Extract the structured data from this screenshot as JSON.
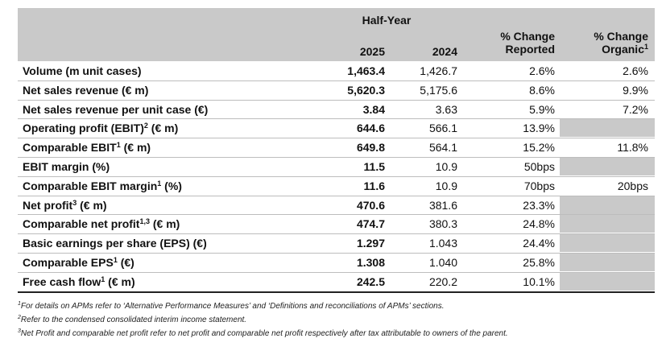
{
  "header": {
    "period": "Half-Year",
    "col_2025": "2025",
    "col_2024": "2024",
    "col_reported": [
      "% Change",
      "Reported"
    ],
    "col_organic": [
      "% Change",
      "Organic"
    ],
    "col_organic_sup": "1"
  },
  "rows": [
    {
      "label": "Volume (m unit cases)",
      "sup": "",
      "suffix": "",
      "v2025": "1,463.4",
      "v2024": "1,426.7",
      "reported": "2.6%",
      "organic": "2.6%",
      "organic_grey": false
    },
    {
      "label": "Net sales revenue (€ m)",
      "sup": "",
      "suffix": "",
      "v2025": "5,620.3",
      "v2024": "5,175.6",
      "reported": "8.6%",
      "organic": "9.9%",
      "organic_grey": false
    },
    {
      "label": "Net sales revenue per unit case (€)",
      "sup": "",
      "suffix": "",
      "v2025": "3.84",
      "v2024": "3.63",
      "reported": "5.9%",
      "organic": "7.2%",
      "organic_grey": false
    },
    {
      "label": "Operating profit (EBIT)",
      "sup": "2",
      "suffix": " (€ m)",
      "v2025": "644.6",
      "v2024": "566.1",
      "reported": "13.9%",
      "organic": "",
      "organic_grey": true
    },
    {
      "label": "Comparable EBIT",
      "sup": "1",
      "suffix": " (€ m)",
      "v2025": "649.8",
      "v2024": "564.1",
      "reported": "15.2%",
      "organic": "11.8%",
      "organic_grey": false
    },
    {
      "label": "EBIT margin (%)",
      "sup": "",
      "suffix": "",
      "v2025": "11.5",
      "v2024": "10.9",
      "reported": "50bps",
      "organic": "",
      "organic_grey": true
    },
    {
      "label": "Comparable EBIT margin",
      "sup": "1",
      "suffix": " (%)",
      "v2025": "11.6",
      "v2024": "10.9",
      "reported": "70bps",
      "organic": "20bps",
      "organic_grey": false
    },
    {
      "label": "Net profit",
      "sup": "3",
      "suffix": " (€ m)",
      "v2025": "470.6",
      "v2024": "381.6",
      "reported": "23.3%",
      "organic": "",
      "organic_grey": true
    },
    {
      "label": "Comparable net profit",
      "sup": "1,3",
      "suffix": " (€ m)",
      "v2025": "474.7",
      "v2024": "380.3",
      "reported": "24.8%",
      "organic": "",
      "organic_grey": true
    },
    {
      "label": "Basic earnings per share (EPS) (€)",
      "sup": "",
      "suffix": "",
      "v2025": "1.297",
      "v2024": "1.043",
      "reported": "24.4%",
      "organic": "",
      "organic_grey": true
    },
    {
      "label": "Comparable EPS",
      "sup": "1",
      "suffix": " (€)",
      "v2025": "1.308",
      "v2024": "1.040",
      "reported": "25.8%",
      "organic": "",
      "organic_grey": true
    },
    {
      "label": "Free cash flow",
      "sup": "1",
      "suffix": " (€ m)",
      "v2025": "242.5",
      "v2024": "220.2",
      "reported": "10.1%",
      "organic": "",
      "organic_grey": true
    }
  ],
  "footnotes": [
    {
      "sup": "1",
      "text": "For details on APMs refer to ‘Alternative Performance Measures’ and ‘Definitions and reconciliations of APMs’ sections."
    },
    {
      "sup": "2",
      "text": "Refer to the condensed consolidated interim income statement."
    },
    {
      "sup": "3",
      "text": "Net Profit and comparable net profit refer to net profit and comparable net profit respectively after tax attributable to owners of the parent."
    }
  ],
  "colors": {
    "header_bg": "#c9c9c9",
    "grey_cell": "#c9c9c9"
  }
}
